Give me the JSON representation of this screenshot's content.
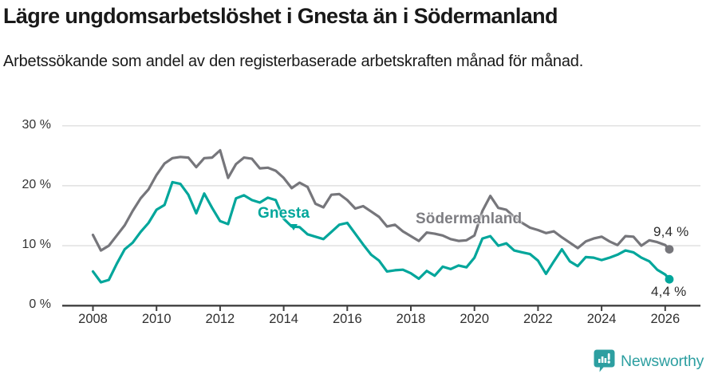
{
  "header": {
    "title": "Lägre ungdomsarbetslöshet i Gnesta än i Södermanland",
    "subtitle": "Arbetssökande som andel av den registerbaserade arbetskraften månad för månad."
  },
  "chart_data": {
    "type": "line",
    "title": "Lägre ungdomsarbetslöshet i Gnesta än i Södermanland",
    "xlabel": "",
    "ylabel": "Arbetssökande som andel av den registerbaserade arbetskraften",
    "grid": "horizontal-only",
    "legend_position": "inline-labels-on-lines",
    "xlim": [
      2007.85,
      2026.35
    ],
    "ylim": [
      0,
      30
    ],
    "x_ticks": [
      {
        "v": 2008,
        "label": "2008"
      },
      {
        "v": 2010,
        "label": "2010"
      },
      {
        "v": 2012,
        "label": "2012"
      },
      {
        "v": 2014,
        "label": "2014"
      },
      {
        "v": 2016,
        "label": "2016"
      },
      {
        "v": 2018,
        "label": "2018"
      },
      {
        "v": 2020,
        "label": "2020"
      },
      {
        "v": 2022,
        "label": "2022"
      },
      {
        "v": 2024,
        "label": "2024"
      },
      {
        "v": 2026,
        "label": "2026"
      }
    ],
    "y_ticks": [
      {
        "v": 0,
        "label": "0 %"
      },
      {
        "v": 10,
        "label": "10 %"
      },
      {
        "v": 20,
        "label": "20 %"
      },
      {
        "v": 30,
        "label": "30 %"
      }
    ],
    "resolution_note": "monthly data shown; values estimated quarterly from chart",
    "x": [
      2008.0,
      2008.25,
      2008.5,
      2008.75,
      2009.0,
      2009.25,
      2009.5,
      2009.75,
      2010.0,
      2010.25,
      2010.5,
      2010.75,
      2011.0,
      2011.25,
      2011.5,
      2011.75,
      2012.0,
      2012.25,
      2012.5,
      2012.75,
      2013.0,
      2013.25,
      2013.5,
      2013.75,
      2014.0,
      2014.25,
      2014.5,
      2014.75,
      2015.0,
      2015.25,
      2015.5,
      2015.75,
      2016.0,
      2016.25,
      2016.5,
      2016.75,
      2017.0,
      2017.25,
      2017.5,
      2017.75,
      2018.0,
      2018.25,
      2018.5,
      2018.75,
      2019.0,
      2019.25,
      2019.5,
      2019.75,
      2020.0,
      2020.25,
      2020.5,
      2020.75,
      2021.0,
      2021.25,
      2021.5,
      2021.75,
      2022.0,
      2022.25,
      2022.5,
      2022.75,
      2023.0,
      2023.25,
      2023.5,
      2023.75,
      2024.0,
      2024.25,
      2024.5,
      2024.75,
      2025.0,
      2025.25,
      2025.5,
      2025.75,
      2026.0,
      2026.13
    ],
    "series": [
      {
        "name": "Södermanland",
        "color": "#76767b",
        "end_label": "9,4 %",
        "end_value": 9.4,
        "values": [
          11.8,
          9.2,
          10.0,
          11.7,
          13.4,
          15.8,
          17.9,
          19.4,
          21.8,
          23.7,
          24.6,
          24.8,
          24.7,
          23.1,
          24.6,
          24.7,
          25.9,
          21.3,
          23.6,
          24.7,
          24.5,
          22.9,
          23.0,
          22.5,
          21.3,
          19.6,
          20.5,
          19.8,
          17.0,
          16.4,
          18.5,
          18.6,
          17.6,
          16.2,
          16.6,
          15.7,
          14.8,
          13.2,
          13.5,
          12.4,
          11.6,
          10.8,
          12.2,
          12.0,
          11.7,
          11.1,
          10.8,
          10.9,
          11.7,
          15.8,
          18.3,
          16.3,
          16.0,
          14.8,
          13.8,
          13.0,
          12.6,
          12.1,
          12.4,
          11.4,
          10.5,
          9.6,
          10.7,
          11.2,
          11.5,
          10.7,
          10.1,
          11.6,
          11.5,
          10.0,
          10.9,
          10.6,
          10.1,
          9.4
        ]
      },
      {
        "name": "Gnesta",
        "color": "#00a69b",
        "end_label": "4,4 %",
        "end_value": 4.4,
        "values": [
          5.7,
          3.9,
          4.3,
          7.0,
          9.4,
          10.5,
          12.3,
          13.8,
          16.0,
          16.8,
          20.6,
          20.3,
          18.5,
          15.4,
          18.7,
          16.3,
          14.1,
          13.6,
          17.9,
          18.4,
          17.6,
          17.2,
          18.0,
          17.6,
          14.5,
          13.2,
          13.1,
          11.9,
          11.5,
          11.1,
          12.3,
          13.5,
          13.8,
          12.0,
          10.2,
          8.5,
          7.5,
          5.7,
          5.9,
          6.0,
          5.4,
          4.5,
          5.8,
          5.0,
          6.5,
          6.1,
          6.7,
          6.4,
          8.0,
          11.2,
          11.6,
          10.0,
          10.4,
          9.2,
          8.9,
          8.6,
          7.5,
          5.3,
          7.4,
          9.4,
          7.4,
          6.6,
          8.1,
          8.0,
          7.6,
          8.0,
          8.5,
          9.2,
          8.9,
          8.0,
          7.4,
          6.0,
          5.2,
          4.4
        ]
      }
    ]
  },
  "colors": {
    "gnesta_teal": "#00a69b",
    "sodermanland_gray": "#76767b",
    "gridline": "#e1e1e1",
    "axis": "#3f3f3f",
    "text": "#191919",
    "brand_teal": "#2d9fa1"
  },
  "footer": {
    "brand": "Newsworthy"
  }
}
